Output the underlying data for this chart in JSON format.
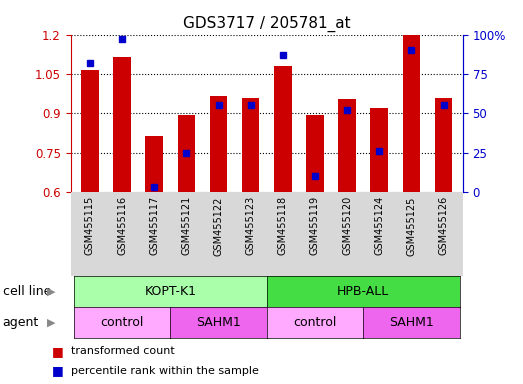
{
  "title": "GDS3717 / 205781_at",
  "samples": [
    "GSM455115",
    "GSM455116",
    "GSM455117",
    "GSM455121",
    "GSM455122",
    "GSM455123",
    "GSM455118",
    "GSM455119",
    "GSM455120",
    "GSM455124",
    "GSM455125",
    "GSM455126"
  ],
  "bar_values": [
    1.065,
    1.115,
    0.815,
    0.895,
    0.965,
    0.96,
    1.08,
    0.895,
    0.955,
    0.92,
    1.2,
    0.96
  ],
  "percentile_values": [
    82,
    97,
    3,
    25,
    55,
    55,
    87,
    10,
    52,
    26,
    90,
    55
  ],
  "ylim_left": [
    0.6,
    1.2
  ],
  "ylim_right": [
    0,
    100
  ],
  "yticks_left": [
    0.6,
    0.75,
    0.9,
    1.05,
    1.2
  ],
  "yticks_right": [
    0,
    25,
    50,
    75,
    100
  ],
  "bar_color": "#cc0000",
  "marker_color": "#0000cc",
  "bar_width": 0.55,
  "cell_line_groups": [
    {
      "label": "KOPT-K1",
      "start": 0,
      "end": 6,
      "color": "#aaffaa"
    },
    {
      "label": "HPB-ALL",
      "start": 6,
      "end": 12,
      "color": "#44dd44"
    }
  ],
  "agent_groups": [
    {
      "label": "control",
      "start": 0,
      "end": 3,
      "color": "#ffaaff"
    },
    {
      "label": "SAHM1",
      "start": 3,
      "end": 6,
      "color": "#ee66ee"
    },
    {
      "label": "control",
      "start": 6,
      "end": 9,
      "color": "#ffaaff"
    },
    {
      "label": "SAHM1",
      "start": 9,
      "end": 12,
      "color": "#ee66ee"
    }
  ],
  "legend_items": [
    {
      "label": "transformed count",
      "color": "#cc0000"
    },
    {
      "label": "percentile rank within the sample",
      "color": "#0000cc"
    }
  ],
  "cell_line_label": "cell line",
  "agent_label": "agent",
  "tick_fontsize": 8.5,
  "title_fontsize": 11,
  "sample_fontsize": 7,
  "annot_fontsize": 9
}
